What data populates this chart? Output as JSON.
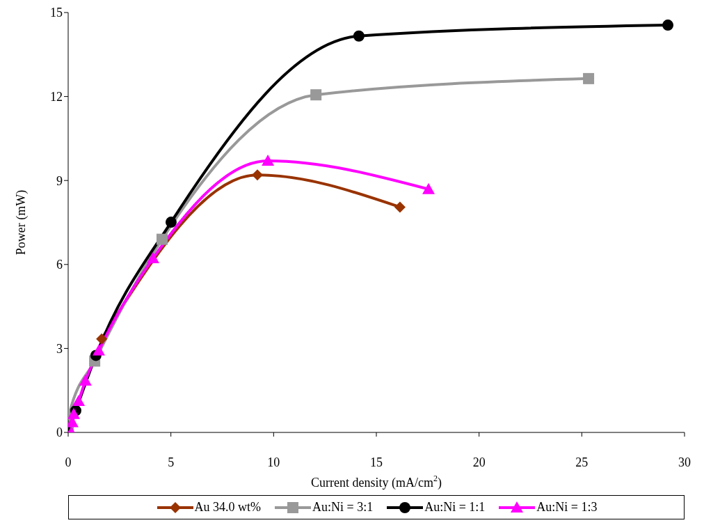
{
  "chart_data": {
    "type": "line",
    "xlabel": "Current density (mA/cm$^{2}$)",
    "ylabel": "Power (mW)",
    "xlim": [
      0,
      30
    ],
    "xticks": [
      0,
      5,
      10,
      15,
      20,
      25,
      30
    ],
    "ylim": [
      0,
      15
    ],
    "yticks": [
      0,
      3,
      6,
      9,
      12,
      15
    ],
    "legend": "bottom",
    "series": [
      {
        "name": "Au 34.0 wt%",
        "color": "#993300",
        "marker": "diamond",
        "x": [
          1.63,
          9.21,
          16.15
        ],
        "values": [
          3.34,
          9.2,
          8.05
        ]
      },
      {
        "name": "Au:Ni = 3:1",
        "color": "#999999",
        "marker": "square",
        "x": [
          0,
          0.05,
          1.29,
          4.57,
          12.06,
          25.33
        ],
        "values": [
          0,
          0.64,
          2.55,
          6.9,
          12.06,
          12.64
        ]
      },
      {
        "name": "Au:Ni = 1:1",
        "color": "#000000",
        "marker": "circle",
        "x": [
          0,
          0.05,
          0.37,
          1.35,
          5.01,
          14.15,
          29.19
        ],
        "values": [
          0,
          null,
          0.78,
          2.75,
          7.51,
          14.16,
          14.55
        ]
      },
      {
        "name": "Au:Ni = 1:3",
        "color": "#ff00ff",
        "marker": "triangle",
        "x": [
          0.15,
          0.2,
          0.27,
          0.51,
          0.84,
          1.49,
          4.13,
          9.72,
          17.54
        ],
        "values": [
          0,
          0.36,
          0.65,
          1.12,
          1.85,
          2.92,
          6.22,
          9.7,
          8.69
        ]
      }
    ]
  }
}
